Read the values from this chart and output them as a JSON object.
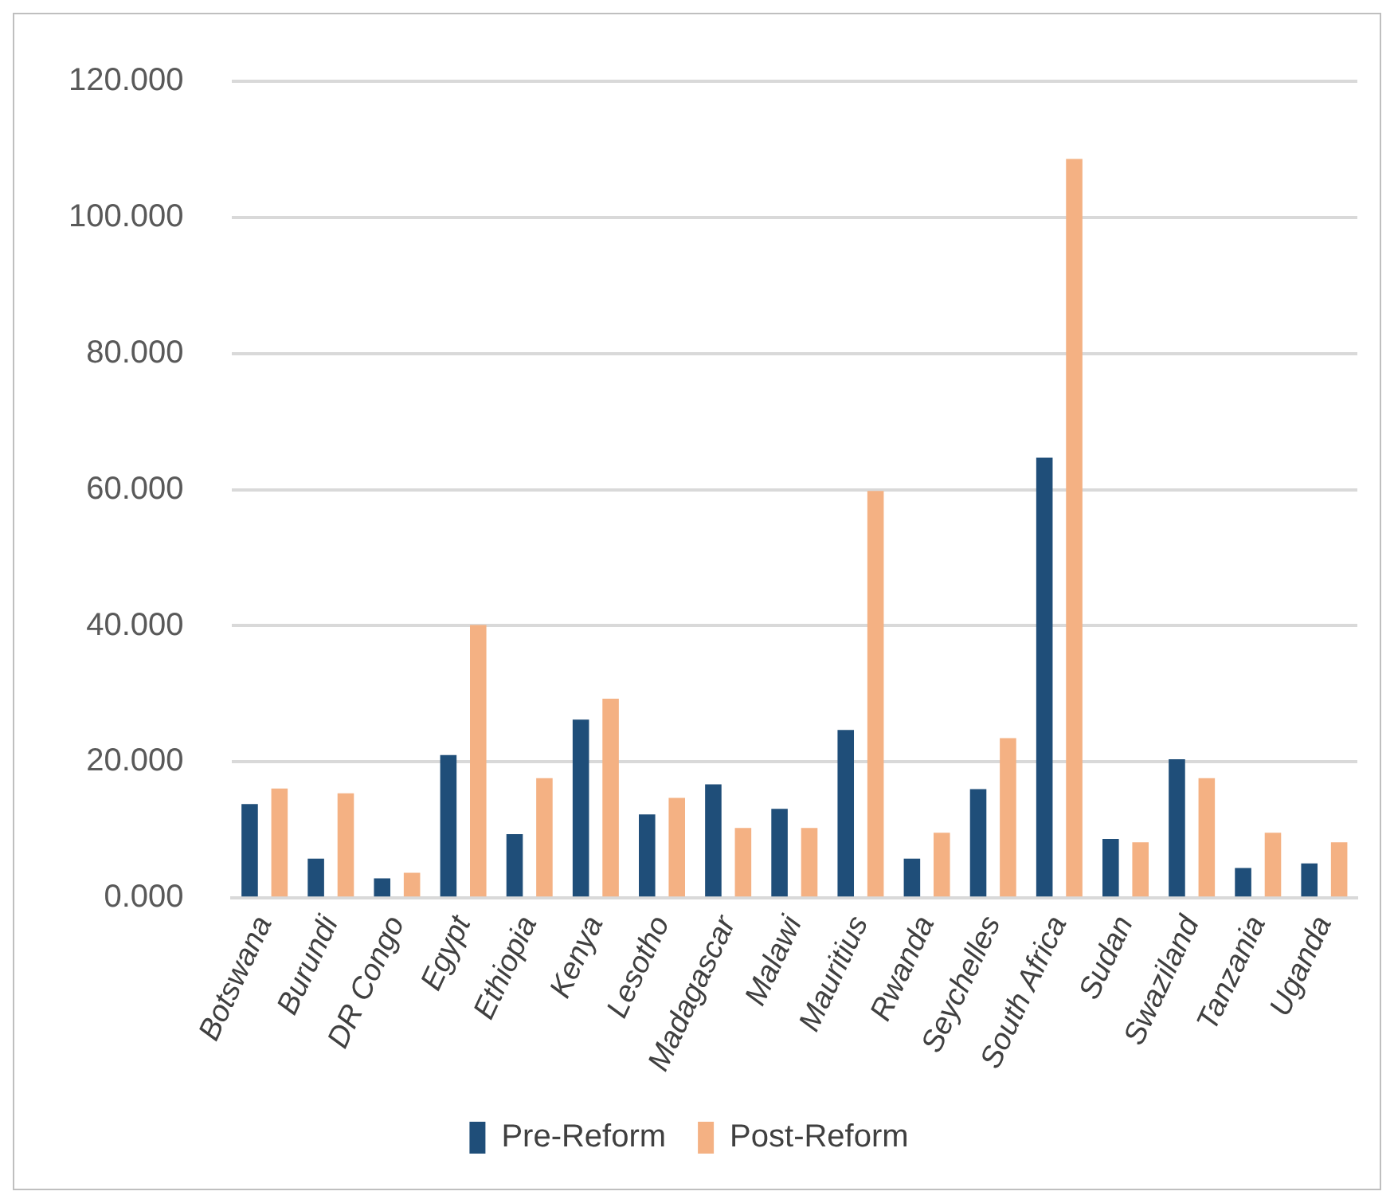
{
  "chart_data": {
    "type": "bar",
    "categories": [
      "Botswana",
      "Burundi",
      "DR Congo",
      "Egypt",
      "Ethiopia",
      "Kenya",
      "Lesotho",
      "Madagascar",
      "Malawi",
      "Mauritius",
      "Rwanda",
      "Seychelles",
      "South Africa",
      "Sudan",
      "Swaziland",
      "Tanzania",
      "Uganda"
    ],
    "series": [
      {
        "name": "Pre-Reform",
        "color": "#1f4e79",
        "values": [
          13.8,
          5.8,
          2.9,
          21.0,
          9.4,
          26.2,
          12.3,
          16.7,
          13.1,
          24.7,
          5.8,
          16.0,
          64.7,
          8.7,
          20.4,
          4.4,
          5.1
        ]
      },
      {
        "name": "Post-Reform",
        "color": "#f4b183",
        "values": [
          16.1,
          15.4,
          3.7,
          40.1,
          17.6,
          29.3,
          14.7,
          10.3,
          10.3,
          59.8,
          9.6,
          23.5,
          108.6,
          8.2,
          17.6,
          9.6,
          8.2
        ]
      }
    ],
    "ylim": [
      0,
      120
    ],
    "yticks": [
      {
        "value": 0,
        "label": "0.000"
      },
      {
        "value": 20,
        "label": "20.000"
      },
      {
        "value": 40,
        "label": "40.000"
      },
      {
        "value": 60,
        "label": "60.000"
      },
      {
        "value": 80,
        "label": "80.000"
      },
      {
        "value": 100,
        "label": "100.000"
      },
      {
        "value": 120,
        "label": "120.000"
      }
    ],
    "grid": "y",
    "legend": "bottom"
  }
}
